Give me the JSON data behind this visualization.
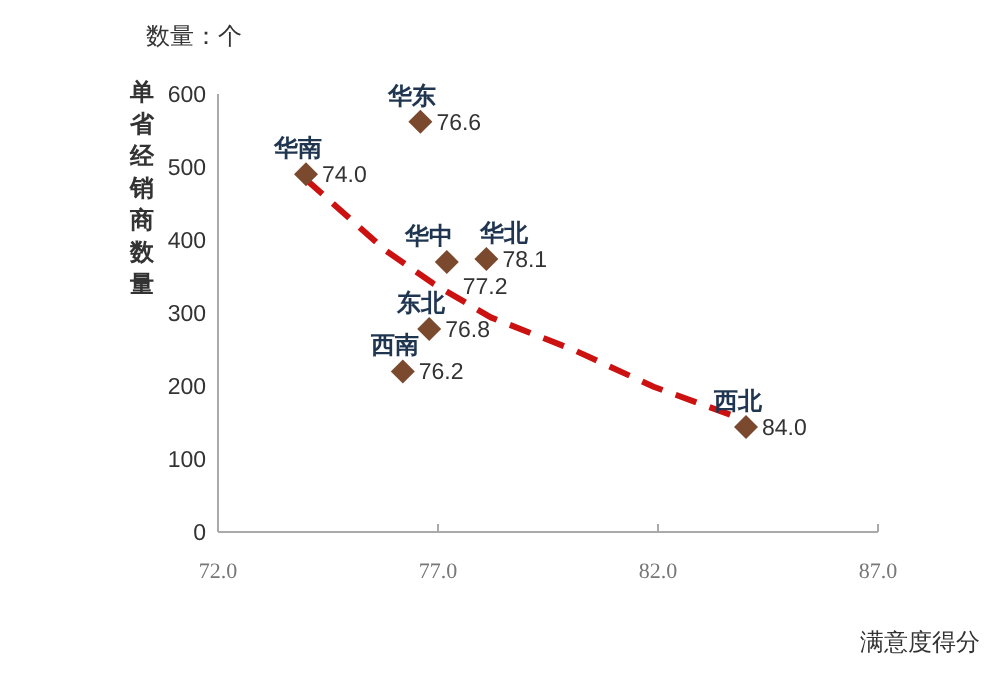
{
  "chart_data": {
    "type": "scatter",
    "xlabel": "满意度得分",
    "ylabel": "单省经销商数量",
    "annotations": [
      "数量：个",
      {
        "text": "华东",
        "x": 76.6,
        "y": 562
      },
      {
        "text": "华南",
        "x": 74.0,
        "y": 490
      },
      {
        "text": "华中",
        "x": 77.2,
        "y": 370
      },
      {
        "text": "华北",
        "x": 78.1,
        "y": 374
      },
      {
        "text": "东北",
        "x": 76.8,
        "y": 278
      },
      {
        "text": "西南",
        "x": 76.2,
        "y": 220
      },
      {
        "text": "西北",
        "x": 84.0,
        "y": 144
      },
      {
        "text": "76.6",
        "x": 76.6,
        "y": 562
      },
      {
        "text": "74.0",
        "x": 74.0,
        "y": 490
      },
      {
        "text": "77.2",
        "x": 77.2,
        "y": 370
      },
      {
        "text": "78.1",
        "x": 78.1,
        "y": 374
      },
      {
        "text": "76.8",
        "x": 76.8,
        "y": 278
      },
      {
        "text": "76.2",
        "x": 76.2,
        "y": 220
      },
      {
        "text": "84.0",
        "x": 84.0,
        "y": 144
      }
    ],
    "xlim": [
      72,
      87
    ],
    "xticks": [
      {
        "value": 72,
        "label": "72.0"
      },
      {
        "value": 77,
        "label": "77.0"
      },
      {
        "value": 82,
        "label": "82.0"
      },
      {
        "value": 87,
        "label": "87.0"
      }
    ],
    "ylim": [
      0,
      600
    ],
    "yticks": [
      0,
      100,
      200,
      300,
      400,
      500,
      600
    ],
    "grid": false,
    "series": [
      {
        "marker": "diamond",
        "color": "#7b4a2e",
        "x": [
          76.6,
          74.0,
          77.2,
          78.1,
          76.8,
          76.2,
          84.0
        ],
        "values": [
          562,
          490,
          370,
          374,
          278,
          220,
          144
        ]
      },
      {
        "type": "line",
        "color": "#cc1111",
        "line_style": "dashed",
        "marker": "none",
        "x": [
          74.0,
          75.8,
          76.9,
          78.2,
          80.1,
          81.9,
          83.9
        ],
        "values": [
          483,
          386,
          340,
          294,
          249,
          199,
          155
        ]
      }
    ]
  }
}
